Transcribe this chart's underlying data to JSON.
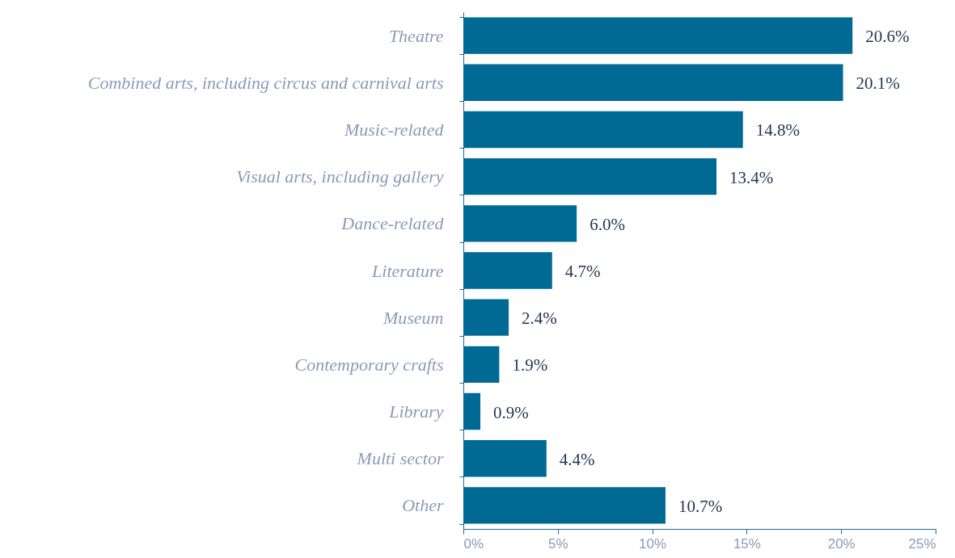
{
  "chart_data": {
    "type": "bar",
    "orientation": "horizontal",
    "categories": [
      "Theatre",
      "Combined arts, including circus and carnival arts",
      "Music-related",
      "Visual arts, including gallery",
      "Dance-related",
      "Literature",
      "Museum",
      "Contemporary crafts",
      "Library",
      "Multi sector",
      "Other"
    ],
    "values": [
      20.6,
      20.1,
      14.8,
      13.4,
      6.0,
      4.7,
      2.4,
      1.9,
      0.9,
      4.4,
      10.7
    ],
    "value_labels": [
      "20.6%",
      "20.1%",
      "14.8%",
      "13.4%",
      "6.0%",
      "4.7%",
      "2.4%",
      "1.9%",
      "0.9%",
      "4.4%",
      "10.7%"
    ],
    "color": "#006994",
    "xlim": [
      0,
      25
    ],
    "xticks": [
      {
        "value": 0,
        "label": "0%"
      },
      {
        "value": 5,
        "label": "5%"
      },
      {
        "value": 10,
        "label": "10%"
      },
      {
        "value": 15,
        "label": "15%"
      },
      {
        "value": 20,
        "label": "20%"
      },
      {
        "value": 25,
        "label": "25%"
      }
    ]
  }
}
